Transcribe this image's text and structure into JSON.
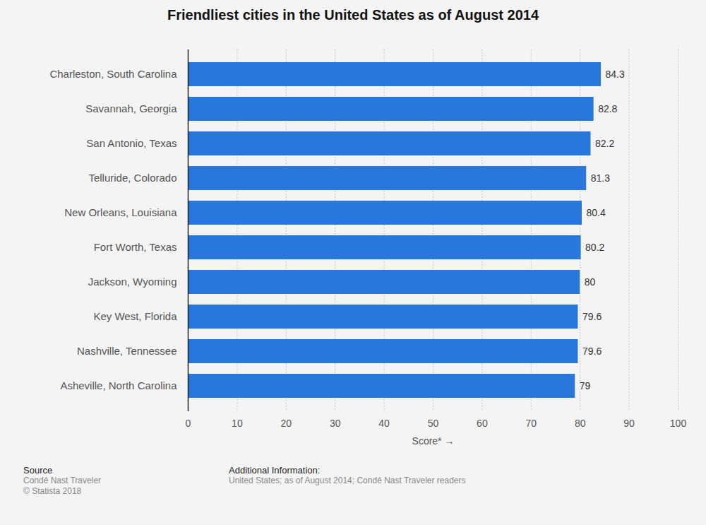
{
  "chart_data": {
    "type": "bar",
    "orientation": "horizontal",
    "title": "Friendliest cities in the United States as of August 2014",
    "categories": [
      "Charleston, South Carolina",
      "Savannah, Georgia",
      "San Antonio, Texas",
      "Telluride, Colorado",
      "New Orleans, Louisiana",
      "Fort Worth, Texas",
      "Jackson, Wyoming",
      "Key West, Florida",
      "Nashville, Tennessee",
      "Asheville, North Carolina"
    ],
    "values": [
      84.3,
      82.8,
      82.2,
      81.3,
      80.4,
      80.2,
      80,
      79.6,
      79.6,
      79
    ],
    "color": "#2878dc",
    "xlabel": "Score*",
    "xlim": [
      0,
      100
    ],
    "xticks": [
      0,
      10,
      20,
      30,
      40,
      50,
      60,
      70,
      80,
      90,
      100
    ],
    "grid": true,
    "data_labels": true,
    "source_title": "Source",
    "source": [
      "Condé Nast Traveler",
      "© Statista 2018"
    ],
    "notes_title": "Additional Information:",
    "notes": [
      "United States; as of August 2014; Condé Nast Traveler readers"
    ]
  }
}
